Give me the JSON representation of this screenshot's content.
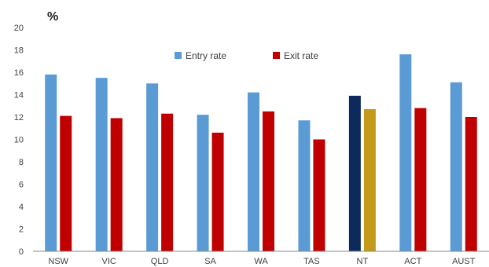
{
  "chart_data": {
    "type": "bar",
    "ylabel": "%",
    "ylim": [
      0,
      20
    ],
    "yticks": [
      0,
      2,
      4,
      6,
      8,
      10,
      12,
      14,
      16,
      18,
      20
    ],
    "grid": false,
    "legend_position": "top-center",
    "categories": [
      "NSW",
      "VIC",
      "QLD",
      "SA",
      "WA",
      "TAS",
      "NT",
      "ACT",
      "AUST"
    ],
    "series": [
      {
        "name": "Entry rate",
        "color": "#5b9bd5",
        "values": [
          15.8,
          15.5,
          15.0,
          12.2,
          14.2,
          11.7,
          13.9,
          17.6,
          15.1
        ],
        "highlight": {
          "NT": "#0e2a5c"
        }
      },
      {
        "name": "Exit rate",
        "color": "#c00000",
        "values": [
          12.1,
          11.9,
          12.3,
          10.6,
          12.5,
          10.0,
          12.7,
          12.8,
          12.0
        ],
        "highlight": {
          "NT": "#c49a1a"
        }
      }
    ]
  }
}
